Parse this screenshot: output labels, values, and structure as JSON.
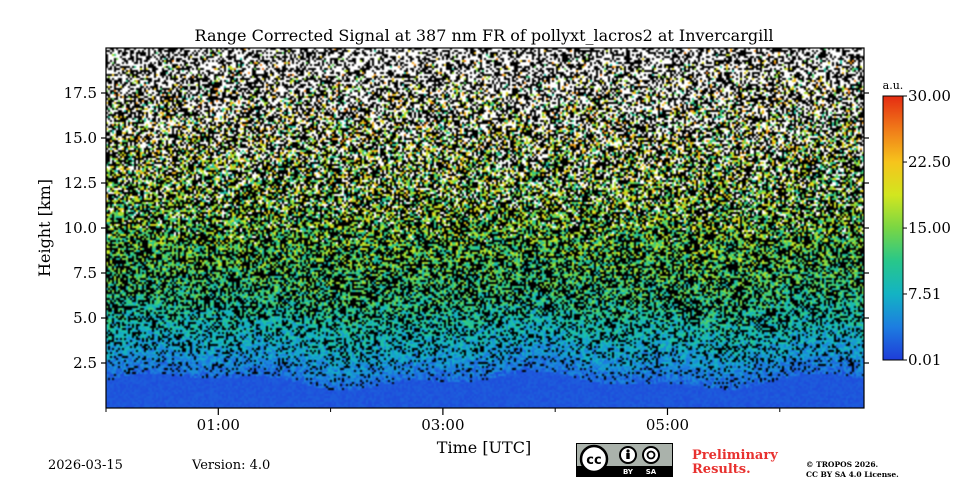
{
  "chart_data": {
    "type": "heatmap",
    "title": "Range Corrected Signal at 387 nm FR of pollyxt_lacros2 at Invercargill",
    "xlabel": "Time [UTC]",
    "ylabel": "Height [km]",
    "xlim_hours": [
      0.0,
      6.75
    ],
    "ylim_km": [
      0.0,
      20.0
    ],
    "x_major_ticks": [
      1,
      3,
      5
    ],
    "x_major_labels": [
      "01:00",
      "03:00",
      "05:00"
    ],
    "x_minor_ticks": [
      0,
      2,
      4,
      6
    ],
    "y_ticks": [
      2.5,
      5.0,
      7.5,
      10.0,
      12.5,
      15.0,
      17.5
    ],
    "y_tick_labels": [
      "2.5",
      "5.0",
      "7.5",
      "10.0",
      "12.5",
      "15.0",
      "17.5"
    ],
    "colorbar": {
      "unit": "a.u.",
      "min": 0.01,
      "max": 30.0,
      "ticks": [
        0.01,
        7.51,
        15.0,
        22.5,
        30.0
      ],
      "tick_labels": [
        "0.01",
        "7.51",
        "15.00",
        "22.50",
        "30.00"
      ],
      "colormap": [
        "#1e3cd9",
        "#1d7de0",
        "#13b3c4",
        "#28c78a",
        "#79d644",
        "#d2e61f",
        "#f6c41c",
        "#f07a19",
        "#e52c12"
      ]
    },
    "profile_description_values": {
      "boundary_layer_top_km": 1.5,
      "signal_decay_scale_km": 6.0
    }
  },
  "footer": {
    "date": "2026-03-15",
    "version": "Version: 4.0",
    "license_badge_parts": [
      "BY",
      "SA"
    ],
    "preliminary": [
      "Preliminary",
      "Results."
    ],
    "copyright": [
      "© TROPOS 2026.",
      "CC BY SA 4.0 License."
    ]
  }
}
